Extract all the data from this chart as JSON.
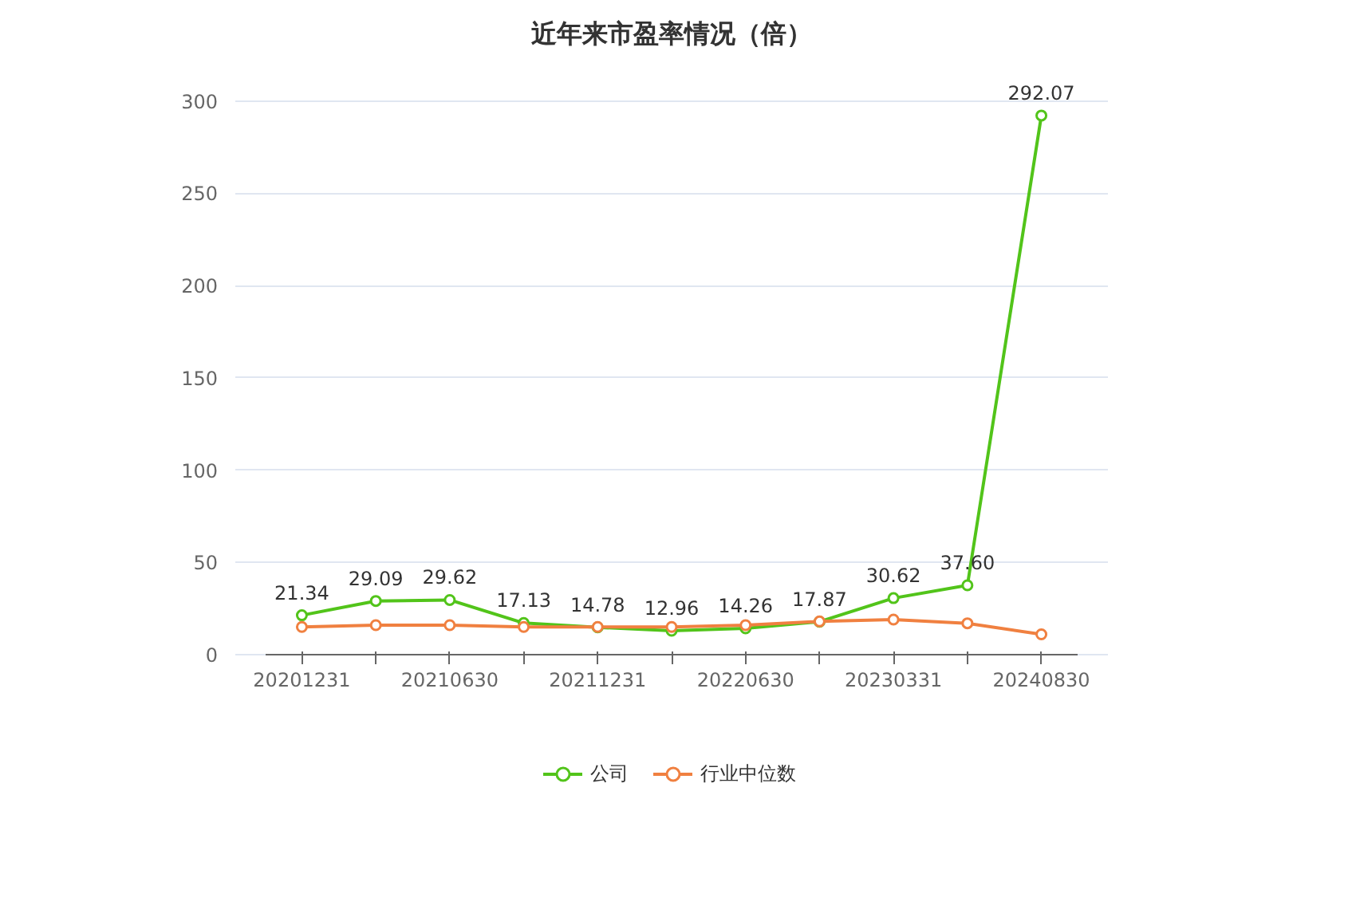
{
  "chart_data": {
    "type": "line",
    "title": "近年来市盈率情况（倍）",
    "categories": [
      "20201231",
      null,
      "20210630",
      null,
      "20211231",
      null,
      "20220630",
      null,
      "20230331",
      null,
      "20240830"
    ],
    "series": [
      {
        "name": "公司",
        "color": "#52c41a",
        "values": [
          21.34,
          29.09,
          29.62,
          17.13,
          14.78,
          12.96,
          14.26,
          17.87,
          30.62,
          37.6,
          292.07
        ],
        "value_labels": [
          "21.34",
          "29.09",
          "29.62",
          "17.13",
          "14.78",
          "12.96",
          "14.26",
          "17.87",
          "30.62",
          "37.60",
          "292.07"
        ]
      },
      {
        "name": "行业中位数",
        "color": "#f08040",
        "values": [
          15,
          16,
          16,
          15,
          15,
          15,
          16,
          18,
          19,
          17,
          11
        ]
      }
    ],
    "ylim": [
      0,
      300
    ],
    "yticks": [
      0,
      50,
      100,
      150,
      200,
      250,
      300
    ],
    "grid": "y",
    "legend": "bottom",
    "marker": "circle",
    "line_style": "solid"
  }
}
